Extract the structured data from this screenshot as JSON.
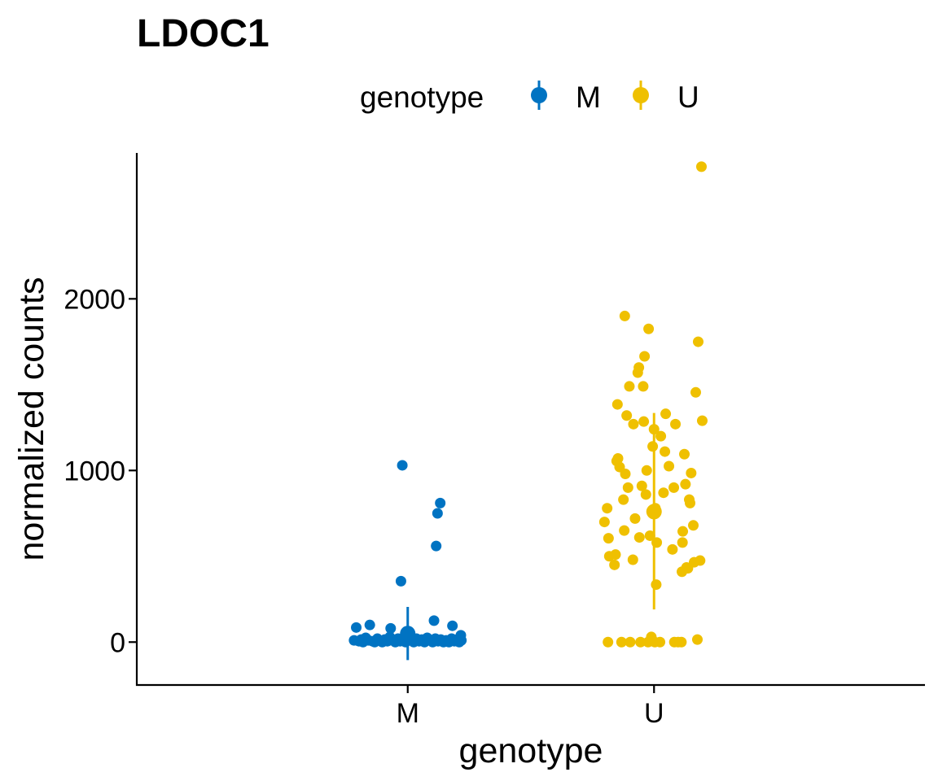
{
  "chart_data": {
    "type": "scatter",
    "title": "LDOC1",
    "xlabel": "genotype",
    "ylabel": "normalized counts",
    "categories": [
      "M",
      "U"
    ],
    "y_ticks": [
      0,
      1000,
      2000
    ],
    "y_tick_labels": [
      "0",
      "1000",
      "2000"
    ],
    "ylim": [
      -250,
      2850
    ],
    "grid": false,
    "legend": {
      "title": "genotype",
      "placement": "top",
      "entries": [
        {
          "label": "M",
          "color": "#0073C2"
        },
        {
          "label": "U",
          "color": "#EFC000"
        }
      ]
    },
    "series": [
      {
        "name": "M",
        "color": "#0073C2",
        "category": "M",
        "summary": {
          "mean": 50,
          "ymin": -105,
          "ymax": 205
        },
        "points": [
          {
            "x": -0.198,
            "y": 10
          },
          {
            "x": -0.19,
            "y": 85
          },
          {
            "x": -0.18,
            "y": 5
          },
          {
            "x": -0.172,
            "y": 15
          },
          {
            "x": -0.165,
            "y": 0
          },
          {
            "x": -0.155,
            "y": 25
          },
          {
            "x": -0.145,
            "y": 10
          },
          {
            "x": -0.14,
            "y": 100
          },
          {
            "x": -0.13,
            "y": 5
          },
          {
            "x": -0.122,
            "y": 0
          },
          {
            "x": -0.112,
            "y": 20
          },
          {
            "x": -0.104,
            "y": 10
          },
          {
            "x": -0.094,
            "y": 0
          },
          {
            "x": -0.085,
            "y": 15
          },
          {
            "x": -0.075,
            "y": 5
          },
          {
            "x": -0.066,
            "y": 30
          },
          {
            "x": -0.063,
            "y": 80
          },
          {
            "x": -0.056,
            "y": 10
          },
          {
            "x": -0.046,
            "y": 0
          },
          {
            "x": -0.036,
            "y": 20
          },
          {
            "x": -0.028,
            "y": 5
          },
          {
            "x": -0.02,
            "y": 1030
          },
          {
            "x": -0.025,
            "y": 355
          },
          {
            "x": -0.018,
            "y": 15
          },
          {
            "x": -0.008,
            "y": 0
          },
          {
            "x": 0.002,
            "y": 25
          },
          {
            "x": 0.012,
            "y": 10
          },
          {
            "x": 0.022,
            "y": 0
          },
          {
            "x": 0.032,
            "y": 20
          },
          {
            "x": 0.042,
            "y": 5
          },
          {
            "x": 0.052,
            "y": 15
          },
          {
            "x": 0.062,
            "y": 0
          },
          {
            "x": 0.072,
            "y": 25
          },
          {
            "x": 0.082,
            "y": 10
          },
          {
            "x": 0.092,
            "y": 0
          },
          {
            "x": 0.097,
            "y": 125
          },
          {
            "x": 0.102,
            "y": 20
          },
          {
            "x": 0.105,
            "y": 560
          },
          {
            "x": 0.11,
            "y": 750
          },
          {
            "x": 0.112,
            "y": 5
          },
          {
            "x": 0.12,
            "y": 810
          },
          {
            "x": 0.122,
            "y": 15
          },
          {
            "x": 0.132,
            "y": 0
          },
          {
            "x": 0.142,
            "y": 10
          },
          {
            "x": 0.152,
            "y": 0
          },
          {
            "x": 0.162,
            "y": 20
          },
          {
            "x": 0.165,
            "y": 95
          },
          {
            "x": 0.172,
            "y": 5
          },
          {
            "x": 0.182,
            "y": 15
          },
          {
            "x": 0.19,
            "y": 0
          },
          {
            "x": 0.196,
            "y": 40
          },
          {
            "x": 0.198,
            "y": 10
          }
        ]
      },
      {
        "name": "U",
        "color": "#EFC000",
        "category": "U",
        "summary": {
          "mean": 760,
          "ymin": 190,
          "ymax": 1335
        },
        "points": [
          {
            "x": -0.183,
            "y": 700
          },
          {
            "x": -0.173,
            "y": 780
          },
          {
            "x": -0.17,
            "y": 0
          },
          {
            "x": -0.168,
            "y": 605
          },
          {
            "x": -0.165,
            "y": 500
          },
          {
            "x": -0.146,
            "y": 450
          },
          {
            "x": -0.142,
            "y": 510
          },
          {
            "x": -0.138,
            "y": 1055
          },
          {
            "x": -0.135,
            "y": 1385
          },
          {
            "x": -0.133,
            "y": 1070
          },
          {
            "x": -0.127,
            "y": 1020
          },
          {
            "x": -0.12,
            "y": 0
          },
          {
            "x": -0.113,
            "y": 830
          },
          {
            "x": -0.11,
            "y": 650
          },
          {
            "x": -0.108,
            "y": 1900
          },
          {
            "x": -0.106,
            "y": 980
          },
          {
            "x": -0.101,
            "y": 1320
          },
          {
            "x": -0.096,
            "y": 900
          },
          {
            "x": -0.091,
            "y": 1490
          },
          {
            "x": -0.088,
            "y": 0
          },
          {
            "x": -0.078,
            "y": 480
          },
          {
            "x": -0.076,
            "y": 1270
          },
          {
            "x": -0.07,
            "y": 720
          },
          {
            "x": -0.06,
            "y": 1570
          },
          {
            "x": -0.056,
            "y": 1600
          },
          {
            "x": -0.054,
            "y": 610
          },
          {
            "x": -0.05,
            "y": 0
          },
          {
            "x": -0.045,
            "y": 910
          },
          {
            "x": -0.04,
            "y": 1490
          },
          {
            "x": -0.038,
            "y": 1285
          },
          {
            "x": -0.035,
            "y": 1665
          },
          {
            "x": -0.03,
            "y": 860
          },
          {
            "x": -0.027,
            "y": 1000
          },
          {
            "x": -0.022,
            "y": 0
          },
          {
            "x": -0.02,
            "y": 1825
          },
          {
            "x": -0.015,
            "y": 620
          },
          {
            "x": -0.01,
            "y": 30
          },
          {
            "x": -0.005,
            "y": 1140
          },
          {
            "x": 0.0,
            "y": 1240
          },
          {
            "x": 0.003,
            "y": 0
          },
          {
            "x": 0.005,
            "y": 780
          },
          {
            "x": 0.008,
            "y": 335
          },
          {
            "x": 0.01,
            "y": 580
          },
          {
            "x": 0.022,
            "y": 0
          },
          {
            "x": 0.025,
            "y": 1200
          },
          {
            "x": 0.035,
            "y": 870
          },
          {
            "x": 0.04,
            "y": 1110
          },
          {
            "x": 0.043,
            "y": 1330
          },
          {
            "x": 0.055,
            "y": 1025
          },
          {
            "x": 0.068,
            "y": 540
          },
          {
            "x": 0.073,
            "y": 900
          },
          {
            "x": 0.075,
            "y": 0
          },
          {
            "x": 0.079,
            "y": 1270
          },
          {
            "x": 0.089,
            "y": 0
          },
          {
            "x": 0.101,
            "y": 0
          },
          {
            "x": 0.103,
            "y": 410
          },
          {
            "x": 0.105,
            "y": 580
          },
          {
            "x": 0.106,
            "y": 645
          },
          {
            "x": 0.112,
            "y": 1095
          },
          {
            "x": 0.116,
            "y": 920
          },
          {
            "x": 0.12,
            "y": 435
          },
          {
            "x": 0.125,
            "y": 430
          },
          {
            "x": 0.13,
            "y": 830
          },
          {
            "x": 0.133,
            "y": 810
          },
          {
            "x": 0.137,
            "y": 985
          },
          {
            "x": 0.145,
            "y": 680
          },
          {
            "x": 0.148,
            "y": 465
          },
          {
            "x": 0.154,
            "y": 1455
          },
          {
            "x": 0.16,
            "y": 15
          },
          {
            "x": 0.163,
            "y": 1750
          },
          {
            "x": 0.17,
            "y": 475
          },
          {
            "x": 0.178,
            "y": 1290
          },
          {
            "x": 0.175,
            "y": 2770
          }
        ]
      }
    ]
  }
}
